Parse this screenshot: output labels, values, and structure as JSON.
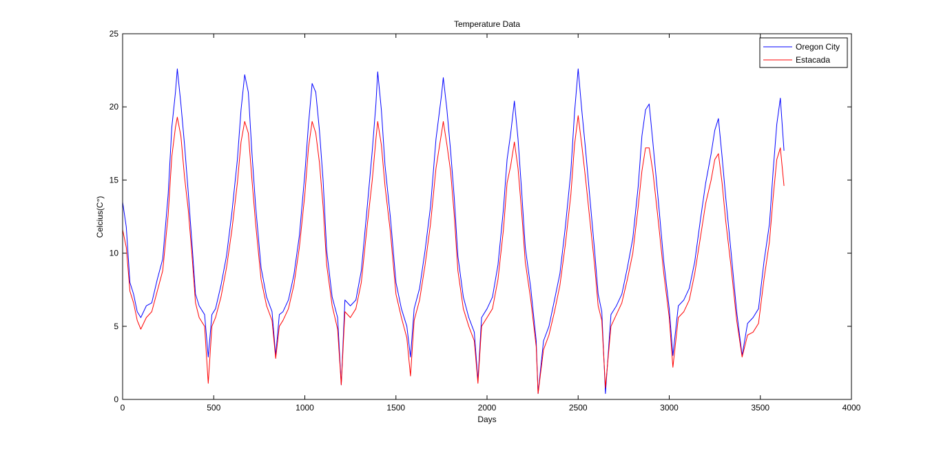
{
  "chart_data": {
    "type": "line",
    "title": "Temperature Data",
    "xlabel": "Days",
    "ylabel": "Celcius(C°)",
    "xlim": [
      0,
      4000
    ],
    "ylim": [
      0,
      25
    ],
    "xticks": [
      "0",
      "500",
      "1000",
      "1500",
      "2000",
      "2500",
      "3000",
      "3500",
      "4000"
    ],
    "yticks": [
      "0",
      "5",
      "10",
      "15",
      "20",
      "25"
    ],
    "grid": false,
    "legend_position": "top-right",
    "series": [
      {
        "name": "Oregon City",
        "color": "#0000ff",
        "x": [
          0,
          20,
          40,
          60,
          80,
          100,
          130,
          160,
          190,
          220,
          250,
          270,
          290,
          300,
          320,
          340,
          360,
          380,
          400,
          420,
          450,
          470,
          490,
          510,
          540,
          570,
          600,
          630,
          650,
          670,
          690,
          710,
          730,
          760,
          790,
          820,
          840,
          860,
          880,
          910,
          940,
          970,
          1000,
          1020,
          1040,
          1060,
          1080,
          1100,
          1120,
          1150,
          1180,
          1200,
          1220,
          1250,
          1280,
          1310,
          1340,
          1370,
          1390,
          1400,
          1420,
          1440,
          1470,
          1500,
          1530,
          1560,
          1580,
          1600,
          1630,
          1660,
          1690,
          1720,
          1750,
          1760,
          1780,
          1800,
          1820,
          1840,
          1870,
          1900,
          1930,
          1950,
          1970,
          2000,
          2030,
          2060,
          2090,
          2110,
          2130,
          2150,
          2170,
          2190,
          2210,
          2240,
          2270,
          2280,
          2310,
          2340,
          2370,
          2400,
          2430,
          2460,
          2480,
          2500,
          2520,
          2540,
          2560,
          2590,
          2610,
          2630,
          2650,
          2680,
          2710,
          2740,
          2770,
          2800,
          2830,
          2850,
          2870,
          2890,
          2910,
          2940,
          2970,
          3000,
          3020,
          3050,
          3080,
          3110,
          3140,
          3170,
          3200,
          3230,
          3250,
          3270,
          3290,
          3310,
          3340,
          3370,
          3400,
          3430,
          3460,
          3490,
          3520,
          3550,
          3570,
          3590,
          3610,
          3630
        ],
        "values": [
          13.5,
          11.8,
          8.0,
          7.2,
          6.0,
          5.6,
          6.4,
          6.6,
          8.2,
          9.6,
          14.0,
          18.6,
          21.0,
          22.6,
          20.2,
          17.4,
          14.2,
          10.8,
          7.2,
          6.4,
          5.8,
          2.9,
          5.8,
          6.2,
          7.8,
          9.8,
          12.8,
          16.4,
          19.8,
          22.2,
          21.0,
          16.8,
          13.2,
          9.0,
          7.0,
          6.0,
          3.0,
          5.8,
          6.0,
          6.8,
          8.5,
          11.2,
          15.4,
          18.8,
          21.6,
          21.0,
          18.4,
          15.0,
          10.2,
          7.0,
          5.6,
          1.0,
          6.8,
          6.4,
          6.8,
          8.8,
          12.8,
          17.0,
          20.2,
          22.4,
          19.8,
          16.0,
          12.4,
          8.0,
          6.2,
          5.0,
          2.9,
          6.2,
          7.6,
          10.2,
          13.2,
          17.8,
          20.8,
          22.0,
          19.8,
          17.0,
          13.8,
          9.8,
          7.0,
          5.6,
          4.6,
          1.3,
          5.6,
          6.2,
          7.0,
          9.2,
          13.0,
          16.4,
          18.2,
          20.4,
          17.8,
          14.2,
          10.4,
          7.6,
          4.0,
          0.4,
          4.0,
          5.0,
          6.8,
          8.6,
          11.8,
          15.6,
          19.6,
          22.6,
          19.8,
          17.2,
          14.4,
          10.2,
          7.2,
          6.0,
          0.4,
          5.8,
          6.4,
          7.2,
          9.0,
          11.0,
          14.6,
          18.0,
          19.8,
          20.2,
          17.6,
          13.6,
          9.4,
          6.2,
          3.0,
          6.4,
          6.8,
          7.6,
          9.4,
          12.2,
          14.8,
          16.8,
          18.4,
          19.2,
          16.6,
          13.8,
          10.0,
          6.0,
          3.0,
          5.2,
          5.6,
          6.2,
          9.4,
          12.0,
          15.6,
          18.8,
          20.6,
          17.0
        ]
      },
      {
        "name": "Estacada",
        "color": "#ff0000",
        "x": [
          0,
          20,
          40,
          60,
          80,
          100,
          130,
          160,
          190,
          220,
          250,
          270,
          290,
          300,
          320,
          340,
          360,
          380,
          400,
          420,
          450,
          470,
          490,
          510,
          540,
          570,
          600,
          630,
          650,
          670,
          690,
          710,
          730,
          760,
          790,
          820,
          840,
          860,
          880,
          910,
          940,
          970,
          1000,
          1020,
          1040,
          1060,
          1080,
          1100,
          1120,
          1150,
          1180,
          1200,
          1220,
          1250,
          1280,
          1310,
          1340,
          1370,
          1390,
          1400,
          1420,
          1440,
          1470,
          1500,
          1530,
          1560,
          1580,
          1600,
          1630,
          1660,
          1690,
          1720,
          1750,
          1760,
          1780,
          1800,
          1820,
          1840,
          1870,
          1900,
          1930,
          1950,
          1970,
          2000,
          2030,
          2060,
          2090,
          2110,
          2130,
          2150,
          2170,
          2190,
          2210,
          2240,
          2270,
          2280,
          2310,
          2340,
          2370,
          2400,
          2430,
          2460,
          2480,
          2500,
          2520,
          2540,
          2560,
          2590,
          2610,
          2630,
          2650,
          2680,
          2710,
          2740,
          2770,
          2800,
          2830,
          2850,
          2870,
          2890,
          2910,
          2940,
          2970,
          3000,
          3020,
          3050,
          3080,
          3110,
          3140,
          3170,
          3200,
          3230,
          3250,
          3270,
          3290,
          3310,
          3340,
          3370,
          3400,
          3430,
          3460,
          3490,
          3520,
          3550,
          3570,
          3590,
          3610,
          3630
        ],
        "values": [
          11.6,
          10.4,
          7.4,
          6.6,
          5.4,
          4.8,
          5.6,
          6.0,
          7.4,
          8.8,
          12.6,
          16.6,
          18.6,
          19.3,
          18.0,
          15.2,
          13.0,
          10.0,
          6.6,
          5.6,
          5.0,
          1.1,
          5.0,
          5.6,
          7.0,
          9.0,
          11.6,
          14.8,
          17.6,
          19.0,
          18.2,
          15.0,
          12.0,
          8.2,
          6.4,
          5.4,
          2.8,
          5.0,
          5.4,
          6.2,
          7.8,
          10.4,
          14.0,
          17.2,
          19.0,
          18.2,
          16.2,
          13.2,
          9.2,
          6.4,
          4.8,
          1.0,
          6.0,
          5.6,
          6.2,
          8.0,
          11.6,
          15.0,
          17.8,
          19.0,
          17.4,
          14.6,
          11.4,
          7.2,
          5.6,
          4.2,
          1.6,
          5.4,
          6.8,
          9.2,
          12.0,
          15.8,
          18.2,
          19.0,
          17.4,
          15.6,
          12.6,
          8.8,
          6.2,
          5.0,
          4.0,
          1.1,
          5.0,
          5.6,
          6.2,
          8.2,
          11.6,
          14.8,
          16.0,
          17.6,
          15.8,
          12.8,
          9.4,
          6.8,
          3.6,
          0.4,
          3.4,
          4.4,
          6.0,
          7.8,
          10.6,
          14.0,
          17.4,
          19.4,
          17.4,
          15.2,
          12.8,
          9.2,
          6.4,
          5.4,
          0.8,
          5.0,
          5.8,
          6.6,
          8.2,
          10.0,
          13.2,
          15.6,
          17.2,
          17.2,
          15.6,
          12.2,
          8.6,
          5.6,
          2.2,
          5.6,
          6.0,
          6.8,
          8.6,
          11.0,
          13.4,
          15.0,
          16.4,
          16.8,
          14.8,
          12.2,
          9.0,
          5.4,
          2.9,
          4.4,
          4.6,
          5.2,
          8.2,
          10.8,
          13.8,
          16.4,
          17.2,
          14.6
        ]
      }
    ]
  }
}
